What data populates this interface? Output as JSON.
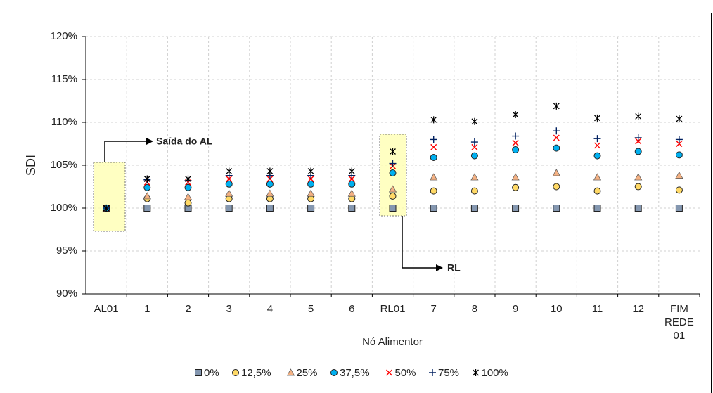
{
  "chart_data": {
    "type": "scatter",
    "x_label": "Nó Alimentor",
    "y_label": "SDI",
    "categories": [
      "AL01",
      "1",
      "2",
      "3",
      "4",
      "5",
      "6",
      "RL01",
      "7",
      "8",
      "9",
      "10",
      "11",
      "12",
      "FIM REDE 01"
    ],
    "ylim": [
      90,
      120
    ],
    "yticks": [
      {
        "value": 90,
        "label": "90%"
      },
      {
        "value": 95,
        "label": "95%"
      },
      {
        "value": 100,
        "label": "100%"
      },
      {
        "value": 105,
        "label": "105%"
      },
      {
        "value": 110,
        "label": "110%"
      },
      {
        "value": 115,
        "label": "115%"
      },
      {
        "value": 120,
        "label": "120%"
      }
    ],
    "grid": true,
    "legend": "bottom",
    "annotations": [
      "Saída do AL",
      "RL"
    ],
    "series": [
      {
        "name": "0%",
        "marker": "square",
        "color": "#8497b0",
        "values": [
          100,
          100,
          100,
          100,
          100,
          100,
          100,
          100,
          100,
          100,
          100,
          100,
          100,
          100,
          100
        ]
      },
      {
        "name": "12,5%",
        "marker": "circle",
        "color": "#ffd966",
        "values": [
          100,
          101.1,
          100.6,
          101.1,
          101.1,
          101.1,
          101.1,
          101.4,
          102.0,
          102.0,
          102.4,
          102.5,
          102.0,
          102.5,
          102.1
        ]
      },
      {
        "name": "25%",
        "marker": "triangle",
        "color": "#f4b183",
        "values": [
          100,
          101.4,
          101.3,
          101.7,
          101.7,
          101.7,
          101.7,
          102.2,
          103.6,
          103.6,
          103.6,
          104.1,
          103.6,
          103.6,
          103.8
        ]
      },
      {
        "name": "37,5%",
        "marker": "circle",
        "color": "#00b0f0",
        "values": [
          100,
          102.4,
          102.4,
          102.8,
          102.8,
          102.8,
          102.8,
          104.1,
          105.9,
          106.1,
          106.8,
          107.0,
          106.1,
          106.6,
          106.2
        ]
      },
      {
        "name": "50%",
        "marker": "x",
        "color": "#ff0000",
        "values": [
          100,
          103.0,
          103.0,
          103.4,
          103.4,
          103.4,
          103.4,
          104.9,
          107.1,
          107.1,
          107.6,
          108.2,
          107.3,
          107.8,
          107.5
        ]
      },
      {
        "name": "75%",
        "marker": "plus",
        "color": "#002060",
        "values": [
          100,
          103.3,
          103.2,
          103.8,
          103.8,
          103.8,
          103.8,
          105.2,
          108.0,
          107.7,
          108.4,
          109.0,
          108.1,
          108.2,
          108.0
        ]
      },
      {
        "name": "100%",
        "marker": "star",
        "color": "#000000",
        "values": [
          100,
          103.4,
          103.4,
          104.3,
          104.3,
          104.3,
          104.3,
          106.6,
          110.3,
          110.1,
          110.9,
          111.9,
          110.5,
          110.7,
          110.4
        ]
      }
    ]
  }
}
